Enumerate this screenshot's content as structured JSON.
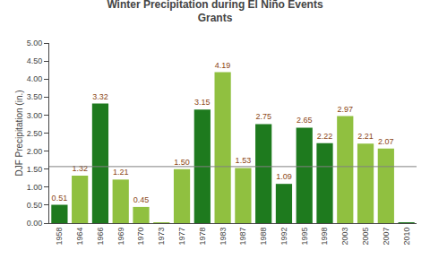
{
  "chart_data": {
    "type": "bar",
    "title": "Winter Precipitation during El Niño Events",
    "subtitle": "Grants",
    "ylabel": "DJF Precipitation (in.)",
    "categories": [
      "1958",
      "1964",
      "1966",
      "1969",
      "1970",
      "1973",
      "1977",
      "1978",
      "1983",
      "1987",
      "1988",
      "1992",
      "1995",
      "1998",
      "2003",
      "2005",
      "2007",
      "2010"
    ],
    "values": [
      0.51,
      1.32,
      3.32,
      1.21,
      0.45,
      0.001,
      1.5,
      3.15,
      4.19,
      1.53,
      2.75,
      1.09,
      2.65,
      2.22,
      2.97,
      2.21,
      2.07,
      0.001
    ],
    "value_labels": [
      "0.51",
      "1.32",
      "3.32",
      "1.21",
      "0.45",
      null,
      "1.50",
      "3.15",
      "4.19",
      "1.53",
      "2.75",
      "1.09",
      "2.65",
      "2.22",
      "2.97",
      "2.21",
      "2.07",
      null
    ],
    "data_labels": true,
    "colors": [
      "#1e7a1e",
      "#90c040",
      "#1e7a1e",
      "#90c040",
      "#90c040",
      "#90c040",
      "#90c040",
      "#1e7a1e",
      "#90c040",
      "#90c040",
      "#1e7a1e",
      "#1e7a1e",
      "#1e7a1e",
      "#1e7a1e",
      "#90c040",
      "#90c040",
      "#90c040",
      "#1e7a1e"
    ],
    "reference_line": 1.57,
    "ylim": [
      0.0,
      5.0
    ],
    "yticks": [
      {
        "value": 0.0,
        "label": "0.00"
      },
      {
        "value": 0.5,
        "label": "0.50"
      },
      {
        "value": 1.0,
        "label": "1.00"
      },
      {
        "value": 1.5,
        "label": "1.50"
      },
      {
        "value": 2.0,
        "label": "2.00"
      },
      {
        "value": 2.5,
        "label": "2.50"
      },
      {
        "value": 3.0,
        "label": "3.00"
      },
      {
        "value": 3.5,
        "label": "3.50"
      },
      {
        "value": 4.0,
        "label": "4.00"
      },
      {
        "value": 4.5,
        "label": "4.50"
      },
      {
        "value": 5.0,
        "label": "5.00"
      }
    ],
    "grid": false
  }
}
